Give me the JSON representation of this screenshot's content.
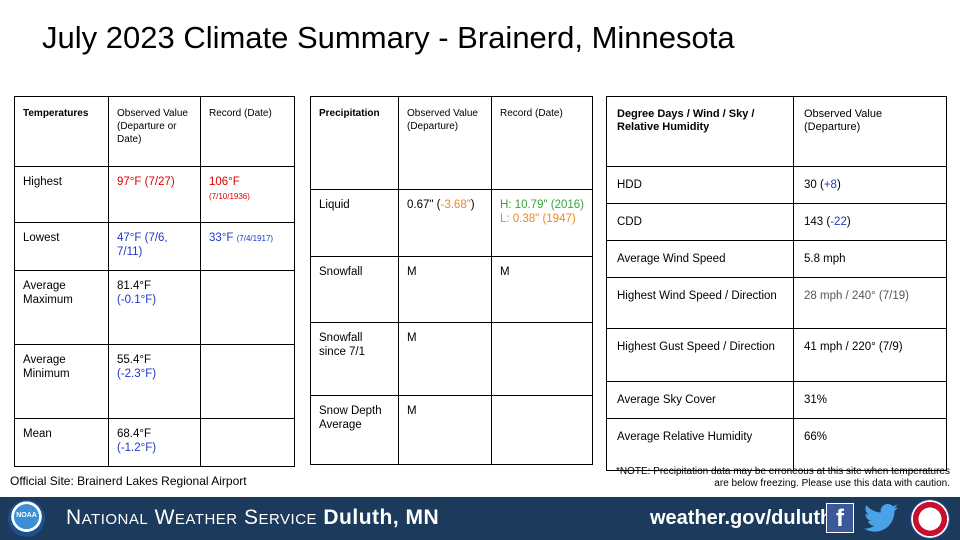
{
  "title": "July 2023 Climate Summary - Brainerd, Minnesota",
  "temperatures": {
    "headers": [
      "Temperatures",
      "Observed Value (Departure or Date)",
      "Record (Date)"
    ],
    "rows": {
      "highest": {
        "label": "Highest",
        "observed": "97°F (7/27)",
        "record": "106°F",
        "record_date": "(7/10/1936)"
      },
      "lowest": {
        "label": "Lowest",
        "observed": "47°F (7/6, 7/11)",
        "record": "33°F",
        "record_date": "(7/4/1917)"
      },
      "avg_max": {
        "label": "Average Maximum",
        "value": "81.4°F",
        "departure": "(-0.1°F)"
      },
      "avg_min": {
        "label": "Average Minimum",
        "value": "55.4°F",
        "departure": "(-2.3°F)"
      },
      "mean": {
        "label": "Mean",
        "value": "68.4°F",
        "departure": "(-1.2°F)"
      }
    }
  },
  "precipitation": {
    "headers": [
      "Precipitation",
      "Observed Value (Departure)",
      "Record (Date)"
    ],
    "rows": {
      "liquid": {
        "label": "Liquid",
        "value": "0.67\"",
        "departure": "-3.68\"",
        "record_high": "H: 10.79\" (2016)",
        "record_low": "L: 0.38\" (1947)"
      },
      "snowfall": {
        "label": "Snowfall",
        "value": "M",
        "record": "M"
      },
      "snowfall_since": {
        "label": "Snowfall since 7/1",
        "value": "M"
      },
      "snow_depth": {
        "label": "Snow Depth Average",
        "value": "M"
      }
    }
  },
  "degree_days": {
    "headers": [
      "Degree Days / Wind / Sky / Relative Humidity",
      "Observed Value (Departure)"
    ],
    "rows": {
      "hdd": {
        "label": "HDD",
        "value": "30",
        "departure": "+8"
      },
      "cdd": {
        "label": "CDD",
        "value": "143",
        "departure": "-22"
      },
      "avg_wind": {
        "label": "Average Wind Speed",
        "value": "5.8 mph"
      },
      "high_wind": {
        "label": "Highest Wind Speed / Direction",
        "value": "28 mph / 240° (7/19)"
      },
      "high_gust": {
        "label": "Highest Gust Speed / Direction",
        "value": "41 mph / 220° (7/9)"
      },
      "sky": {
        "label": "Average Sky Cover",
        "value": "31%"
      },
      "rh": {
        "label": "Average Relative Humidity",
        "value": "66%"
      }
    }
  },
  "official_site": "Official Site: Brainerd Lakes Regional Airport",
  "note": {
    "line1": "*NOTE:  Precipitation data may be erroneous at this site when temperatures",
    "line2": "are below freezing. Please use this data with caution."
  },
  "footer": {
    "noaa": "NOAA",
    "nws_prefix": "National Weather Service",
    "office": "Duluth, MN",
    "url": "weather.gov/duluth",
    "facebook_glyph": "f"
  },
  "colors": {
    "record_red": "#e00000",
    "below_blue": "#1f37c8",
    "dry_orange": "#e88a1a",
    "record_green": "#3aa33a",
    "footer_bg": "#1b3a5c"
  }
}
